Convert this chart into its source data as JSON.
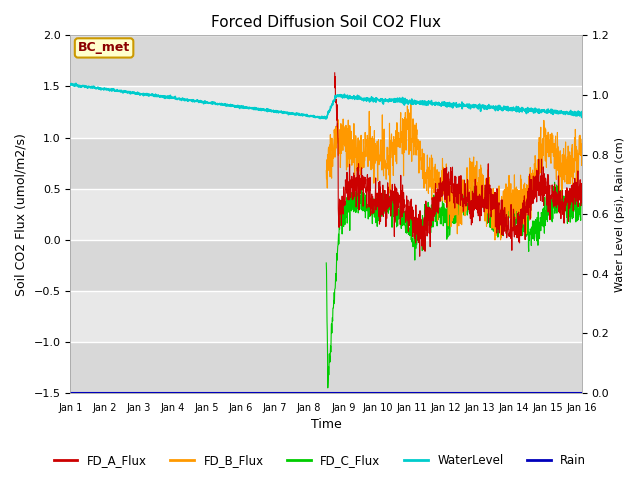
{
  "title": "Forced Diffusion Soil CO2 Flux",
  "xlabel": "Time",
  "ylabel_left": "Soil CO2 Flux (umol/m2/s)",
  "ylabel_right": "Water Level (psi), Rain (cm)",
  "xlim": [
    0,
    15
  ],
  "ylim_left": [
    -1.5,
    2.0
  ],
  "ylim_right": [
    0.0,
    1.2
  ],
  "xtick_positions": [
    0,
    1,
    2,
    3,
    4,
    5,
    6,
    7,
    8,
    9,
    10,
    11,
    12,
    13,
    14,
    15
  ],
  "xtick_labels": [
    "Jan 1",
    "Jan 2",
    "Jan 3",
    "Jan 4",
    "Jan 5",
    "Jan 6",
    "Jan 7",
    "Jan 8",
    "Jan 9",
    "Jan 10",
    "Jan 11",
    "Jan 12",
    "Jan 13",
    "Jan 14",
    "Jan 15",
    "Jan 16"
  ],
  "fig_bg_color": "#ffffff",
  "plot_bg_color": "#e8e8e8",
  "band_color_light": "#f0f0f0",
  "band_color_dark": "#e0e0e0",
  "legend_label_box": "BC_met",
  "colors": {
    "FD_A_Flux": "#cc0000",
    "FD_B_Flux": "#ff9900",
    "FD_C_Flux": "#00cc00",
    "WaterLevel": "#00cccc",
    "Rain": "#0000bb"
  }
}
